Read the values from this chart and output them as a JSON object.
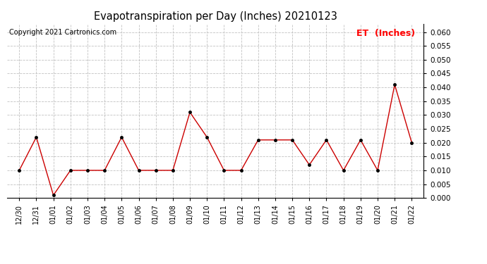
{
  "title": "Evapotranspiration per Day (Inches) 20210123",
  "copyright_text": "Copyright 2021 Cartronics.com",
  "legend_label": "ET  (Inches)",
  "legend_color": "#ff0000",
  "copyright_color": "#000000",
  "line_color": "#cc0000",
  "marker_color": "#000000",
  "background_color": "#ffffff",
  "grid_color": "#aaaaaa",
  "x_labels": [
    "12/30",
    "12/31",
    "01/01",
    "01/02",
    "01/03",
    "01/04",
    "01/05",
    "01/06",
    "01/07",
    "01/08",
    "01/09",
    "01/10",
    "01/11",
    "01/12",
    "01/13",
    "01/14",
    "01/15",
    "01/16",
    "01/17",
    "01/18",
    "01/19",
    "01/20",
    "01/21",
    "01/22"
  ],
  "y_values": [
    0.01,
    0.022,
    0.001,
    0.01,
    0.01,
    0.01,
    0.022,
    0.01,
    0.01,
    0.01,
    0.031,
    0.022,
    0.01,
    0.01,
    0.021,
    0.021,
    0.021,
    0.012,
    0.021,
    0.01,
    0.021,
    0.01,
    0.041,
    0.02
  ],
  "ylim": [
    0.0,
    0.063
  ],
  "yticks": [
    0.0,
    0.005,
    0.01,
    0.015,
    0.02,
    0.025,
    0.03,
    0.035,
    0.04,
    0.045,
    0.05,
    0.055,
    0.06
  ]
}
